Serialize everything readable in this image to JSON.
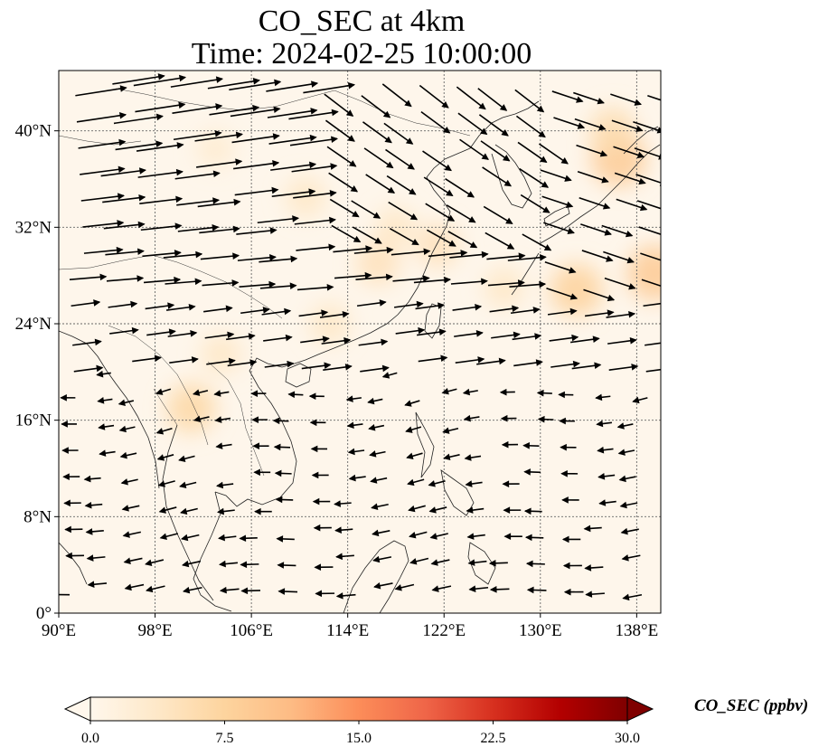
{
  "title": {
    "line1": "CO_SEC at 4km",
    "line2": "Time: 2024-02-25 10:00:00"
  },
  "map": {
    "lon_range": [
      90,
      140
    ],
    "lat_range": [
      0,
      45
    ],
    "lon_ticks": [
      {
        "value": 90,
        "label": "90°E"
      },
      {
        "value": 98,
        "label": "98°E"
      },
      {
        "value": 106,
        "label": "106°E"
      },
      {
        "value": 114,
        "label": "114°E"
      },
      {
        "value": 122,
        "label": "122°E"
      },
      {
        "value": 130,
        "label": "130°E"
      },
      {
        "value": 138,
        "label": "138°E"
      }
    ],
    "lat_ticks": [
      {
        "value": 0,
        "label": "0°"
      },
      {
        "value": 8,
        "label": "8°N"
      },
      {
        "value": 16,
        "label": "16°N"
      },
      {
        "value": 24,
        "label": "24°N"
      },
      {
        "value": 32,
        "label": "32°N"
      },
      {
        "value": 40,
        "label": "40°N"
      }
    ],
    "gridlines": true,
    "field_background_color": "#fef6eb",
    "plumes": [
      {
        "lon": 136.5,
        "lat": 37.7,
        "value": 9
      },
      {
        "lon": 133.0,
        "lat": 26.8,
        "value": 8
      },
      {
        "lon": 139.5,
        "lat": 28.2,
        "value": 9
      },
      {
        "lon": 116.5,
        "lat": 29.0,
        "value": 5
      },
      {
        "lon": 121.5,
        "lat": 30.5,
        "value": 5
      },
      {
        "lon": 110.5,
        "lat": 34.5,
        "value": 4
      },
      {
        "lon": 118.0,
        "lat": 32.0,
        "value": 4
      },
      {
        "lon": 101.0,
        "lat": 17.0,
        "value": 7
      },
      {
        "lon": 103.5,
        "lat": 21.5,
        "value": 4
      },
      {
        "lon": 112.5,
        "lat": 24.0,
        "value": 4
      },
      {
        "lon": 136.0,
        "lat": 40.0,
        "value": 6
      },
      {
        "lon": 127.0,
        "lat": 27.0,
        "value": 4
      },
      {
        "lon": 103.0,
        "lat": 38.5,
        "value": 3
      }
    ]
  },
  "colorbar": {
    "label": "CO_SEC (ppbv)",
    "min": 0.0,
    "max": 30.0,
    "ticks": [
      "0.0",
      "7.5",
      "15.0",
      "22.5",
      "30.0"
    ],
    "extend": "both",
    "colormap": "OrRd",
    "color_stops": [
      "#fff7ec",
      "#fee8c8",
      "#fdd49e",
      "#fdbb84",
      "#fc8d59",
      "#ef6548",
      "#d7301f",
      "#b30000",
      "#7f0000"
    ]
  }
}
